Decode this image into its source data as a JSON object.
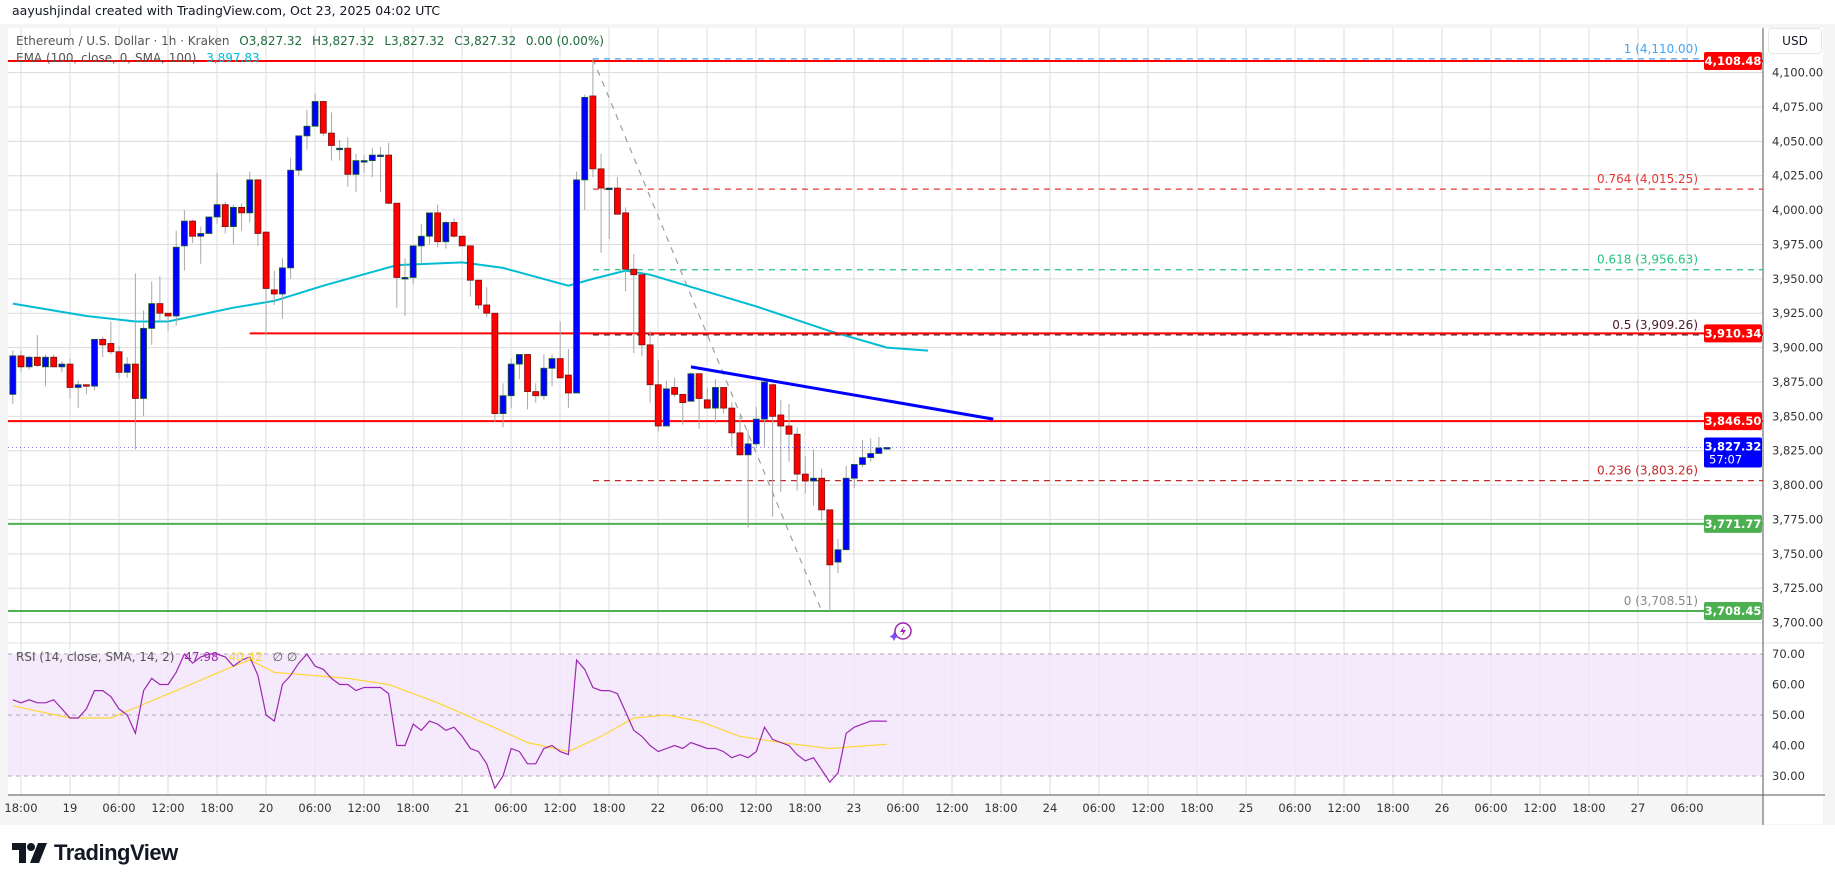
{
  "credit": "aayushjindal created with TradingView.com, Oct 23, 2025 04:02 UTC",
  "legend": {
    "symbol": "Ethereum / U.S. Dollar · 1h · Kraken",
    "open": "O3,827.32",
    "high": "H3,827.32",
    "low": "L3,827.32",
    "close": "C3,827.32",
    "change": "0.00 (0.00%)",
    "ema_label": "EMA (100, close, 0, SMA, 100)",
    "ema_value": "3,897.83",
    "rsi_label": "RSI (14, close, SMA, 14, 2)",
    "rsi_value": "47.98",
    "rsi_sma_value": "40.42",
    "rsi_extra": "∅ ∅"
  },
  "currency": "USD",
  "logo_text": "TradingView",
  "colors": {
    "up": "#0000ff",
    "down": "#ff0000",
    "ema": "#00bcd4",
    "rsi": "#9c27b0",
    "rsi_sma": "#fdd835",
    "rsi_band": "#f3e5fc",
    "resistance": "#ff0000",
    "support": "#4caf50",
    "trendline": "#0000ff"
  },
  "chart_data": {
    "type": "candlestick",
    "title": "",
    "interval": "1h",
    "first_candle": "10-18 17:00",
    "ylim": [
      3690,
      4125
    ],
    "grid": true,
    "price_ticks": [
      "4,100.00",
      "4,075.00",
      "4,050.00",
      "4,025.00",
      "4,000.00",
      "3,975.00",
      "3,950.00",
      "3,925.00",
      "3,900.00",
      "3,875.00",
      "3,850.00",
      "3,825.00",
      "3,800.00",
      "3,775.00",
      "3,750.00",
      "3,725.00",
      "3,700.00"
    ],
    "time_ticks": [
      "18:00",
      "19",
      "06:00",
      "12:00",
      "18:00",
      "20",
      "06:00",
      "12:00",
      "18:00",
      "21",
      "06:00",
      "12:00",
      "18:00",
      "22",
      "06:00",
      "12:00",
      "18:00",
      "23",
      "06:00",
      "12:00",
      "18:00",
      "24",
      "06:00",
      "12:00",
      "18:00",
      "25",
      "06:00",
      "12:00",
      "18:00",
      "26",
      "06:00",
      "12:00",
      "18:00",
      "27",
      "06:00"
    ],
    "candles_ohlc": [
      [
        3866,
        3898,
        3859,
        3894
      ],
      [
        3894,
        3898,
        3882,
        3886
      ],
      [
        3886,
        3894,
        3884,
        3893
      ],
      [
        3893,
        3909,
        3886,
        3887
      ],
      [
        3886,
        3895,
        3872,
        3893
      ],
      [
        3893,
        3895,
        3886,
        3886
      ],
      [
        3886,
        3890,
        3882,
        3888
      ],
      [
        3888,
        3892,
        3863,
        3871
      ],
      [
        3871,
        3876,
        3856,
        3873
      ],
      [
        3873,
        3873,
        3866,
        3872
      ],
      [
        3872,
        3906,
        3869,
        3906
      ],
      [
        3906,
        3908,
        3893,
        3902
      ],
      [
        3903,
        3919,
        3895,
        3897
      ],
      [
        3897,
        3901,
        3877,
        3882
      ],
      [
        3882,
        3893,
        3878,
        3888
      ],
      [
        3888,
        3954,
        3826,
        3863
      ],
      [
        3863,
        3927,
        3850,
        3914
      ],
      [
        3914,
        3948,
        3902,
        3932
      ],
      [
        3932,
        3952,
        3919,
        3925
      ],
      [
        3925,
        3925,
        3912,
        3923
      ],
      [
        3923,
        3985,
        3916,
        3973
      ],
      [
        3974,
        4000,
        3956,
        3992
      ],
      [
        3992,
        3993,
        3976,
        3981
      ],
      [
        3981,
        3988,
        3961,
        3983
      ],
      [
        3983,
        3995,
        3983,
        3995
      ],
      [
        3995,
        4027,
        3990,
        4004
      ],
      [
        4004,
        4006,
        3983,
        3988
      ],
      [
        3988,
        4004,
        3975,
        4002
      ],
      [
        4002,
        4005,
        3985,
        3998
      ],
      [
        3998,
        4028,
        3991,
        4022
      ],
      [
        4022,
        4022,
        3974,
        3983
      ],
      [
        3984,
        3984,
        3909,
        3943
      ],
      [
        3942,
        3956,
        3931,
        3939
      ],
      [
        3939,
        3965,
        3921,
        3958
      ],
      [
        3958,
        4038,
        3950,
        4029
      ],
      [
        4029,
        4054,
        4025,
        4054
      ],
      [
        4054,
        4073,
        4044,
        4061
      ],
      [
        4061,
        4085,
        4061,
        4079
      ],
      [
        4079,
        4079,
        4054,
        4056
      ],
      [
        4056,
        4071,
        4036,
        4047
      ],
      [
        4045,
        4051,
        4036,
        4045
      ],
      [
        4045,
        4053,
        4017,
        4026
      ],
      [
        4026,
        4041,
        4013,
        4036
      ],
      [
        4036,
        4040,
        4027,
        4036
      ],
      [
        4036,
        4045,
        4024,
        4040
      ],
      [
        4040,
        4046,
        4013,
        4040
      ],
      [
        4040,
        4049,
        4004,
        4005
      ],
      [
        4005,
        4005,
        3929,
        3951
      ],
      [
        3951,
        3965,
        3923,
        3951
      ],
      [
        3951,
        3974,
        3946,
        3974
      ],
      [
        3974,
        3990,
        3961,
        3981
      ],
      [
        3981,
        3998,
        3975,
        3998
      ],
      [
        3998,
        4004,
        3973,
        3977
      ],
      [
        3977,
        3992,
        3972,
        3991
      ],
      [
        3991,
        3994,
        3980,
        3981
      ],
      [
        3981,
        3981,
        3974,
        3974
      ],
      [
        3974,
        3974,
        3937,
        3949
      ],
      [
        3949,
        3949,
        3928,
        3931
      ],
      [
        3931,
        3944,
        3922,
        3925
      ],
      [
        3925,
        3925,
        3846,
        3852
      ],
      [
        3852,
        3874,
        3842,
        3865
      ],
      [
        3865,
        3892,
        3856,
        3888
      ],
      [
        3888,
        3895,
        3877,
        3895
      ],
      [
        3895,
        3895,
        3855,
        3868
      ],
      [
        3868,
        3874,
        3860,
        3865
      ],
      [
        3865,
        3895,
        3862,
        3885
      ],
      [
        3885,
        3895,
        3872,
        3892
      ],
      [
        3892,
        3919,
        3878,
        3878
      ],
      [
        3880,
        3899,
        3856,
        3867
      ],
      [
        3867,
        4028,
        3867,
        4022
      ],
      [
        4022,
        4084,
        4000,
        4082
      ],
      [
        4083,
        4110,
        4024,
        4030
      ],
      [
        4030,
        4041,
        3969,
        4016
      ],
      [
        4016,
        4016,
        3979,
        4016
      ],
      [
        4016,
        4024,
        3997,
        3997
      ],
      [
        3998,
        4002,
        3941,
        3957
      ],
      [
        3957,
        3968,
        3896,
        3953
      ],
      [
        3953,
        3955,
        3894,
        3902
      ],
      [
        3902,
        3912,
        3860,
        3873
      ],
      [
        3873,
        3891,
        3839,
        3843
      ],
      [
        3843,
        3876,
        3843,
        3870
      ],
      [
        3871,
        3878,
        3864,
        3866
      ],
      [
        3866,
        3866,
        3844,
        3860
      ],
      [
        3861,
        3882,
        3861,
        3881
      ],
      [
        3881,
        3881,
        3841,
        3863
      ],
      [
        3862,
        3871,
        3856,
        3856
      ],
      [
        3856,
        3877,
        3845,
        3871
      ],
      [
        3871,
        3871,
        3852,
        3856
      ],
      [
        3856,
        3860,
        3828,
        3838
      ],
      [
        3838,
        3850,
        3822,
        3822
      ],
      [
        3822,
        3840,
        3769,
        3830
      ],
      [
        3830,
        3857,
        3828,
        3848
      ],
      [
        3848,
        3876,
        3828,
        3875
      ],
      [
        3873,
        3874,
        3777,
        3850
      ],
      [
        3851,
        3862,
        3795,
        3843
      ],
      [
        3843,
        3859,
        3817,
        3837
      ],
      [
        3837,
        3842,
        3796,
        3808
      ],
      [
        3808,
        3821,
        3794,
        3803
      ],
      [
        3803,
        3826,
        3785,
        3805
      ],
      [
        3805,
        3812,
        3774,
        3782
      ],
      [
        3782,
        3782,
        3708.51,
        3742
      ],
      [
        3744,
        3761,
        3736,
        3753
      ],
      [
        3753,
        3814,
        3753,
        3805
      ],
      [
        3805,
        3815,
        3798,
        3815
      ],
      [
        3815,
        3833,
        3813,
        3820
      ],
      [
        3820,
        3834,
        3817,
        3823
      ],
      [
        3823,
        3835,
        3823,
        3827
      ],
      [
        3827.32,
        3827.32,
        3827.32,
        3827.32
      ]
    ],
    "ema": {
      "name": "EMA (100, close, 0, SMA, 100)",
      "points": [
        [
          "10-18 17:00",
          3932
        ],
        [
          "10-19 02:00",
          3923
        ],
        [
          "10-19 08:00",
          3919
        ],
        [
          "10-19 12:00",
          3919
        ],
        [
          "10-19 20:00",
          3929
        ],
        [
          "10-20 01:00",
          3934
        ],
        [
          "10-20 07:00",
          3945
        ],
        [
          "10-20 16:00",
          3960
        ],
        [
          "10-21 00:00",
          3962
        ],
        [
          "10-21 05:00",
          3958
        ],
        [
          "10-21 13:00",
          3945
        ],
        [
          "10-21 16:00",
          3950
        ],
        [
          "10-21 20:00",
          3956
        ],
        [
          "10-21 23:00",
          3953
        ],
        [
          "10-22 12:00",
          3930
        ],
        [
          "10-22 21:00",
          3912
        ],
        [
          "10-23 04:00",
          3900
        ],
        [
          "10-23 09:00",
          3897.83
        ]
      ]
    },
    "levels": [
      {
        "price": 4108.48,
        "label": "4,108.48",
        "kind": "resistance",
        "from": "start"
      },
      {
        "price": 3910.34,
        "label": "3,910.34",
        "kind": "resistance",
        "from": "10-19 22:00"
      },
      {
        "price": 3846.5,
        "label": "3,846.50",
        "kind": "resistance",
        "from": "start"
      },
      {
        "price": 3771.77,
        "label": "3,771.77",
        "kind": "support",
        "from": "start"
      },
      {
        "price": 3708.45,
        "label": "3,708.45",
        "kind": "support",
        "from": "start"
      }
    ],
    "last_price": {
      "price": 3827.32,
      "label": "3,827.32",
      "countdown": "57:07"
    },
    "fibonacci": {
      "from": "10-21 16:00",
      "levels": [
        {
          "text": "1 (4,110.00)",
          "price": 4110.0,
          "color": "#42a5f5"
        },
        {
          "text": "0.764 (4,015.25)",
          "price": 4015.25,
          "color": "#e53935"
        },
        {
          "text": "0.618 (3,956.63)",
          "price": 3956.63,
          "color": "#26c281"
        },
        {
          "text": "0.5 (3,909.26)",
          "price": 3909.26,
          "color": "#4a1a2c"
        },
        {
          "text": "0.236 (3,803.26)",
          "price": 3803.26,
          "color": "#c62828"
        },
        {
          "text": "0 (3,708.51)",
          "price": 3708.51,
          "color": "#888888"
        }
      ],
      "diagonal": [
        [
          "10-21 16:00",
          4110.0
        ],
        [
          "10-22 20:00",
          3708.51
        ]
      ]
    },
    "trendline": [
      [
        "10-22 04:00",
        3886
      ],
      [
        "10-23 17:00",
        3848
      ]
    ],
    "rsi": {
      "ticks": [
        "70.00",
        "60.00",
        "50.00",
        "40.00",
        "30.00"
      ],
      "ylim": [
        25,
        72
      ],
      "band": [
        30,
        70
      ],
      "values": [
        55,
        54,
        55,
        54,
        54,
        55,
        52,
        49,
        49,
        52,
        58,
        58,
        56,
        52,
        50,
        44,
        58,
        62,
        60,
        60,
        64,
        70,
        67,
        69,
        70,
        70,
        69,
        66,
        68,
        69,
        63,
        50,
        48,
        60,
        63,
        67,
        70,
        66,
        65,
        62,
        60,
        60,
        58,
        59,
        59,
        59,
        57,
        40,
        40,
        47,
        45,
        48,
        47,
        45,
        46,
        43,
        39,
        38,
        34,
        26,
        30,
        39,
        38,
        34,
        34,
        39,
        40,
        38,
        37,
        68,
        65,
        59,
        58,
        58,
        57,
        51,
        45,
        43,
        40,
        38,
        39,
        40,
        39,
        41,
        40,
        39,
        39,
        38,
        36,
        37,
        36,
        38,
        46,
        42,
        41,
        40,
        37,
        35,
        36,
        32,
        28,
        31,
        44,
        46,
        47,
        48,
        48,
        47.98
      ],
      "sma_points": [
        [
          "10-18 17:00",
          53
        ],
        [
          "10-19 00:00",
          49
        ],
        [
          "10-19 05:00",
          49
        ],
        [
          "10-19 13:00",
          58
        ],
        [
          "10-19 20:00",
          66
        ],
        [
          "10-19 22:00",
          68
        ],
        [
          "10-20 01:00",
          64
        ],
        [
          "10-20 10:00",
          62
        ],
        [
          "10-20 15:00",
          60
        ],
        [
          "10-20 21:00",
          54
        ],
        [
          "10-21 03:00",
          47
        ],
        [
          "10-21 08:00",
          41
        ],
        [
          "10-21 13:00",
          38
        ],
        [
          "10-21 17:00",
          43
        ],
        [
          "10-21 21:00",
          49
        ],
        [
          "10-22 01:00",
          50
        ],
        [
          "10-22 05:00",
          48
        ],
        [
          "10-22 10:00",
          43
        ],
        [
          "10-22 15:00",
          41
        ],
        [
          "10-22 21:00",
          39
        ],
        [
          "10-23 04:00",
          40.42
        ]
      ]
    }
  }
}
